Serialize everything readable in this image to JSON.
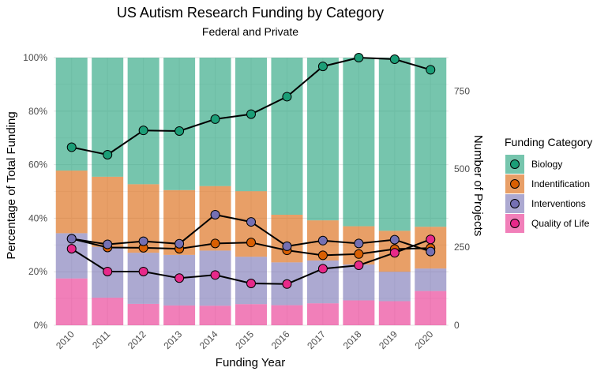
{
  "chart_data": {
    "type": "bar",
    "title": "US Autism Research Funding by Category",
    "subtitle": "Federal and Private",
    "xlabel": "Funding Year",
    "ylabel": "Percentage of Total Funding",
    "y2label": "Number of Projects",
    "categories": [
      "2010",
      "2011",
      "2012",
      "2013",
      "2014",
      "2015",
      "2016",
      "2017",
      "2018",
      "2019",
      "2020"
    ],
    "y_ticks": [
      "0%",
      "20%",
      "40%",
      "60%",
      "80%",
      "100%"
    ],
    "y2_ticks": [
      "0",
      "250",
      "500",
      "750"
    ],
    "ylim": [
      0,
      100
    ],
    "y2lim": [
      0,
      857
    ],
    "grid": true,
    "legend": {
      "title": "Funding Category",
      "placement": "right"
    },
    "bar_series": [
      {
        "name": "Quality of Life",
        "color": "#e7298a",
        "values": [
          17.5,
          10.3,
          8.0,
          7.4,
          7.3,
          7.9,
          7.5,
          8.2,
          9.3,
          9.0,
          12.8
        ]
      },
      {
        "name": "Interventions",
        "color": "#7570b3",
        "values": [
          16.9,
          19.0,
          19.1,
          18.9,
          20.6,
          17.7,
          16.0,
          16.0,
          13.4,
          11.0,
          8.4
        ]
      },
      {
        "name": "Indentification",
        "color": "#d95f02",
        "values": [
          23.4,
          26.2,
          25.6,
          24.2,
          24.1,
          24.5,
          17.8,
          15.0,
          14.3,
          15.3,
          15.6
        ]
      },
      {
        "name": "Biology",
        "color": "#1b9e77",
        "values": [
          42.2,
          44.5,
          47.3,
          49.5,
          48.0,
          49.9,
          58.7,
          60.8,
          63.0,
          64.7,
          63.2
        ]
      }
    ],
    "line_series": [
      {
        "name": "Biology",
        "color": "#1b9e77",
        "values": [
          570,
          546,
          624,
          622,
          660,
          676,
          732,
          829,
          857,
          852,
          818
        ]
      },
      {
        "name": "Indentification",
        "color": "#d95f02",
        "values": [
          277,
          249,
          248,
          245,
          262,
          265,
          240,
          224,
          228,
          244,
          247
        ]
      },
      {
        "name": "Interventions",
        "color": "#7570b3",
        "values": [
          277,
          259,
          269,
          261,
          354,
          331,
          253,
          271,
          262,
          274,
          236
        ]
      },
      {
        "name": "Quality of Life",
        "color": "#e7298a",
        "values": [
          245,
          172,
          172,
          151,
          161,
          134,
          132,
          181,
          192,
          232,
          275
        ]
      }
    ]
  }
}
